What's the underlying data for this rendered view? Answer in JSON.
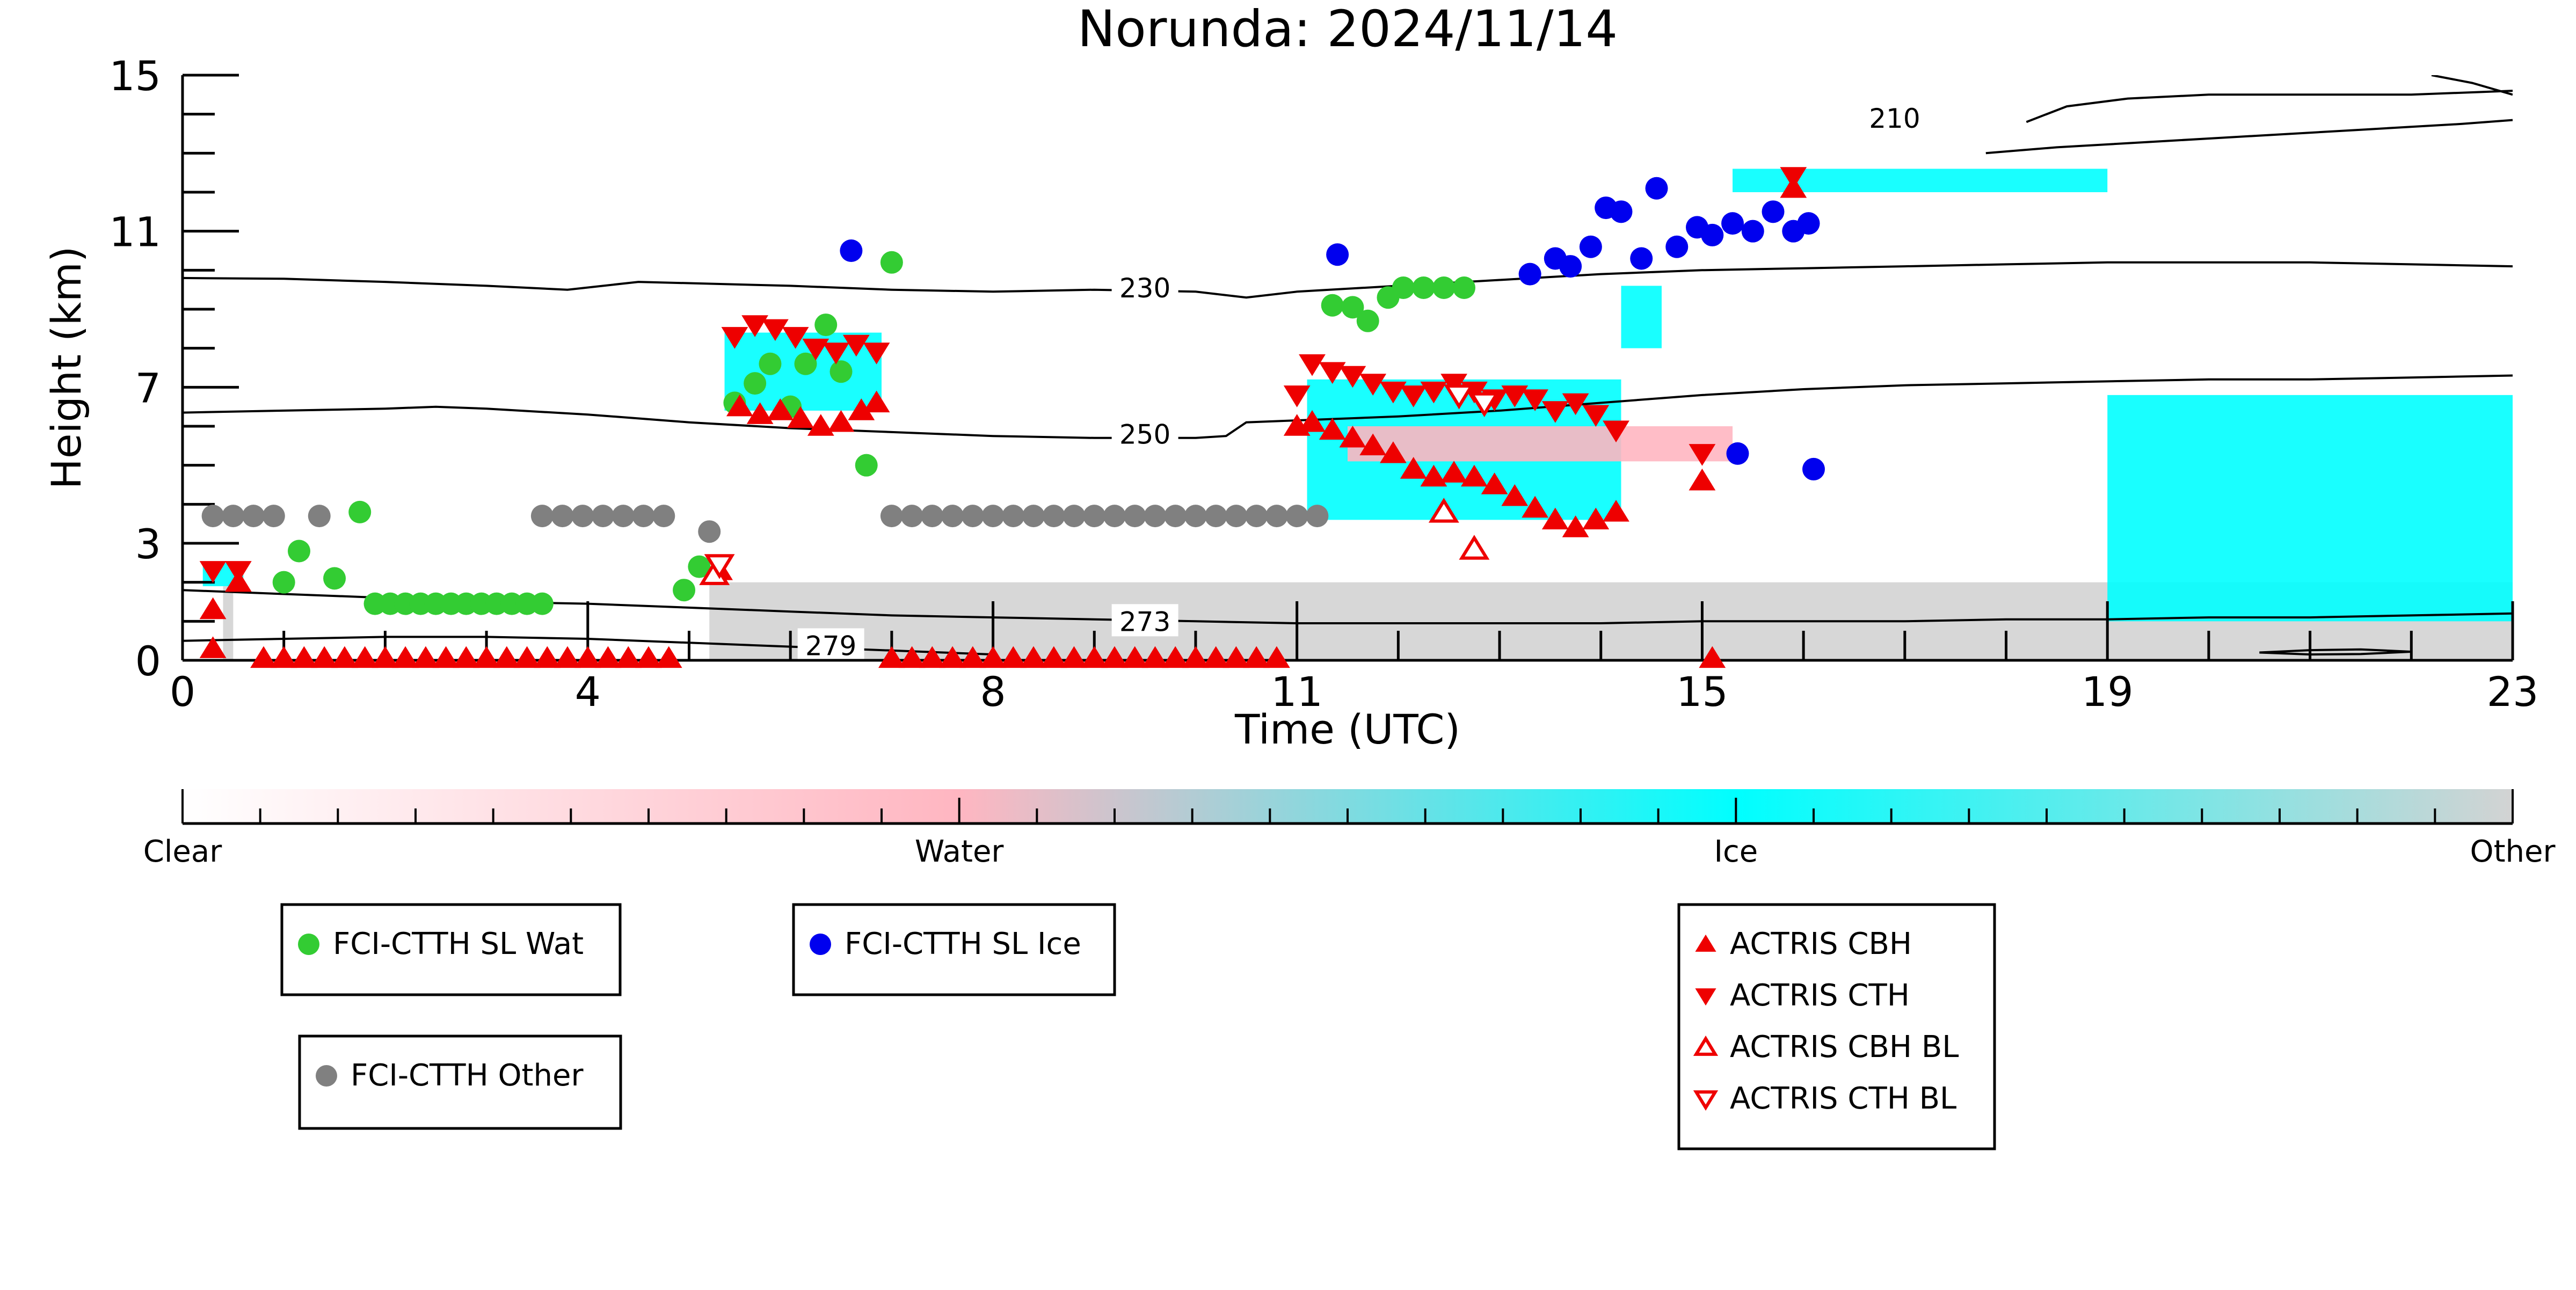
{
  "chart_data": {
    "type": "scatter",
    "title": "Norunda: 2024/11/14",
    "xlabel": "Time (UTC)",
    "ylabel": "Height (km)",
    "xlim": [
      0,
      23
    ],
    "ylim": [
      0,
      15
    ],
    "xticks_labeled": [
      0,
      4,
      8,
      11,
      15,
      19,
      23
    ],
    "yticks_labeled": [
      0,
      3,
      7,
      11,
      15
    ],
    "grid": false,
    "colorbar": {
      "labels": [
        "Clear",
        "Water",
        "Ice",
        "Other"
      ],
      "colors": [
        "#ffffff",
        "#ffb6c1",
        "#00ffff",
        "#d3d3d3"
      ]
    },
    "contours": [
      {
        "label": "210",
        "label_x": 16.9,
        "label_y": 13.9,
        "x": [
          18.2,
          18.6,
          19.2,
          20.0,
          21.0,
          22.0,
          23.0
        ],
        "y": [
          13.8,
          14.2,
          14.4,
          14.5,
          14.5,
          14.5,
          14.6
        ]
      },
      {
        "label": "",
        "label_x": null,
        "label_y": null,
        "x": [
          17.8,
          18.5,
          19.5,
          20.5,
          21.5,
          22.5,
          23.0
        ],
        "y": [
          13.0,
          13.15,
          13.3,
          13.45,
          13.6,
          13.75,
          13.85
        ]
      },
      {
        "label": "",
        "label_x": null,
        "label_y": null,
        "x": [
          22.2,
          22.6,
          23.0
        ],
        "y": [
          15.0,
          14.8,
          14.5
        ]
      },
      {
        "label": "230",
        "label_x": 9.5,
        "label_y": 9.55,
        "x": [
          0,
          1,
          2,
          3,
          3.8,
          4.5,
          6,
          7,
          8,
          9,
          10,
          10.5,
          11,
          12,
          13,
          14,
          15,
          16,
          17,
          18,
          19,
          20,
          21,
          22,
          23
        ],
        "y": [
          9.8,
          9.78,
          9.7,
          9.6,
          9.5,
          9.7,
          9.6,
          9.5,
          9.45,
          9.5,
          9.45,
          9.3,
          9.45,
          9.6,
          9.75,
          9.9,
          10.0,
          10.05,
          10.1,
          10.15,
          10.2,
          10.2,
          10.2,
          10.15,
          10.1
        ]
      },
      {
        "label": "250",
        "label_x": 9.5,
        "label_y": 5.8,
        "x": [
          0,
          1,
          2,
          2.5,
          3,
          4,
          5,
          6,
          7,
          8,
          9,
          10,
          10.3,
          10.5,
          11,
          12,
          13,
          14,
          15,
          16,
          17,
          18,
          19,
          20,
          21,
          22,
          23
        ],
        "y": [
          6.35,
          6.4,
          6.45,
          6.5,
          6.45,
          6.3,
          6.1,
          5.95,
          5.85,
          5.75,
          5.7,
          5.7,
          5.75,
          6.1,
          6.15,
          6.25,
          6.4,
          6.6,
          6.8,
          6.95,
          7.05,
          7.1,
          7.15,
          7.2,
          7.2,
          7.25,
          7.3
        ]
      },
      {
        "label": "273",
        "label_x": 9.5,
        "label_y": 1.0,
        "x": [
          0,
          1,
          2,
          3,
          4,
          5,
          6,
          7,
          8,
          9,
          10,
          11,
          12,
          13,
          14,
          15,
          16,
          17,
          18,
          19,
          20,
          21,
          22,
          23
        ],
        "y": [
          1.8,
          1.7,
          1.6,
          1.5,
          1.45,
          1.35,
          1.25,
          1.15,
          1.1,
          1.05,
          1.0,
          0.95,
          0.95,
          0.95,
          0.95,
          1.0,
          1.0,
          1.0,
          1.05,
          1.05,
          1.1,
          1.1,
          1.15,
          1.2
        ]
      },
      {
        "label": "279",
        "label_x": 6.4,
        "label_y": 0.38,
        "x": [
          0,
          1,
          2,
          3,
          4,
          5,
          6,
          7,
          8
        ],
        "y": [
          0.5,
          0.55,
          0.6,
          0.6,
          0.55,
          0.45,
          0.35,
          0.25,
          0.15
        ]
      },
      {
        "label": "",
        "label_x": null,
        "label_y": null,
        "x": [
          20.5,
          21.0,
          21.5,
          22.0,
          21.5,
          21.0,
          20.5
        ],
        "y": [
          0.2,
          0.26,
          0.28,
          0.22,
          0.16,
          0.15,
          0.2
        ]
      }
    ],
    "series": [
      {
        "name": "FCI-CTTH SL Wat",
        "marker": "circle",
        "color": "#33cc33",
        "x": [
          1.0,
          1.15,
          1.5,
          1.75,
          1.9,
          2.05,
          2.2,
          2.35,
          2.5,
          2.65,
          2.8,
          2.95,
          3.1,
          3.25,
          3.4,
          3.55,
          4.95,
          5.1,
          5.45,
          5.65,
          5.8,
          6.0,
          6.15,
          6.35,
          6.5,
          6.75,
          7.0,
          11.35,
          11.55,
          11.7,
          11.9,
          12.05,
          12.25,
          12.45,
          12.65
        ],
        "y": [
          2.0,
          2.8,
          2.1,
          3.8,
          1.45,
          1.45,
          1.45,
          1.45,
          1.45,
          1.45,
          1.45,
          1.45,
          1.45,
          1.45,
          1.45,
          1.45,
          1.8,
          2.4,
          6.6,
          7.1,
          7.6,
          6.5,
          7.6,
          8.6,
          7.4,
          5.0,
          10.2,
          9.1,
          9.05,
          8.7,
          9.3,
          9.55,
          9.55,
          9.55,
          9.55
        ]
      },
      {
        "name": "FCI-CTTH SL Ice",
        "marker": "circle",
        "color": "#0000ee",
        "x": [
          6.6,
          11.4,
          13.3,
          13.55,
          13.7,
          13.9,
          14.05,
          14.2,
          14.4,
          14.55,
          14.75,
          14.95,
          15.1,
          15.3,
          15.5,
          15.7,
          15.9,
          16.05,
          15.35,
          16.1
        ],
        "y": [
          10.5,
          10.4,
          9.9,
          10.3,
          10.1,
          10.6,
          11.6,
          11.5,
          10.3,
          12.1,
          10.6,
          11.1,
          10.9,
          11.2,
          11.0,
          11.5,
          11.0,
          11.2,
          5.3,
          4.9
        ]
      },
      {
        "name": "FCI-CTTH Other",
        "marker": "circle",
        "color": "#808080",
        "x": [
          0.3,
          0.5,
          0.7,
          0.9,
          1.35,
          3.55,
          3.75,
          3.95,
          4.15,
          4.35,
          4.55,
          4.75,
          5.2,
          7.0,
          7.2,
          7.4,
          7.6,
          7.8,
          8.0,
          8.2,
          8.4,
          8.6,
          8.8,
          9.0,
          9.2,
          9.4,
          9.6,
          9.8,
          10.0,
          10.2,
          10.4,
          10.6,
          10.8,
          11.0,
          11.2
        ],
        "y": [
          3.7,
          3.7,
          3.7,
          3.7,
          3.7,
          3.7,
          3.7,
          3.7,
          3.7,
          3.7,
          3.7,
          3.7,
          3.3,
          3.7,
          3.7,
          3.7,
          3.7,
          3.7,
          3.7,
          3.7,
          3.7,
          3.7,
          3.7,
          3.7,
          3.7,
          3.7,
          3.7,
          3.7,
          3.7,
          3.7,
          3.7,
          3.7,
          3.7,
          3.7,
          3.7
        ]
      },
      {
        "name": "ACTRIS CBH",
        "marker": "triangle-up",
        "color": "#ee0000",
        "x": [
          0.3,
          0.55,
          5.3,
          5.5,
          5.7,
          5.9,
          6.1,
          6.3,
          6.5,
          6.7,
          6.85,
          11.0,
          11.15,
          11.35,
          11.55,
          11.75,
          11.95,
          12.15,
          12.35,
          12.55,
          12.75,
          12.95,
          13.15,
          13.35,
          13.55,
          13.75,
          13.95,
          14.15,
          15.0,
          15.9,
          0.3
        ],
        "y": [
          1.3,
          2.0,
          2.3,
          6.5,
          6.3,
          6.4,
          6.2,
          6.0,
          6.1,
          6.4,
          6.6,
          6.0,
          6.1,
          5.9,
          5.7,
          5.5,
          5.3,
          4.9,
          4.7,
          4.8,
          4.7,
          4.5,
          4.2,
          3.9,
          3.6,
          3.4,
          3.6,
          3.8,
          4.6,
          12.1,
          0.3
        ]
      },
      {
        "name": "ACTRIS CTH",
        "marker": "triangle-down",
        "color": "#ee0000",
        "x": [
          0.3,
          0.55,
          5.3,
          5.45,
          5.65,
          5.85,
          6.05,
          6.25,
          6.45,
          6.65,
          6.85,
          11.0,
          11.15,
          11.35,
          11.55,
          11.75,
          11.95,
          12.15,
          12.35,
          12.55,
          12.75,
          12.95,
          13.15,
          13.35,
          13.55,
          13.75,
          13.95,
          14.15,
          15.0,
          15.9
        ],
        "y": [
          2.3,
          2.3,
          2.4,
          8.3,
          8.6,
          8.5,
          8.3,
          8.0,
          7.9,
          8.1,
          7.9,
          6.8,
          7.6,
          7.4,
          7.3,
          7.1,
          6.9,
          6.8,
          6.9,
          7.1,
          6.9,
          6.7,
          6.8,
          6.7,
          6.4,
          6.6,
          6.3,
          5.9,
          5.3,
          12.4
        ]
      },
      {
        "name": "ACTRIS CBH BL",
        "marker": "triangle-up-open",
        "color": "#ee0000",
        "x": [
          5.25,
          12.45,
          12.75
        ],
        "y": [
          2.2,
          3.8,
          2.85
        ]
      },
      {
        "name": "ACTRIS CTH BL",
        "marker": "triangle-down-open",
        "color": "#ee0000",
        "x": [
          5.3,
          12.6,
          12.85
        ],
        "y": [
          2.45,
          6.8,
          6.6
        ]
      },
      {
        "name": "",
        "marker": "triangle-up",
        "color": "#ee0000",
        "x": [
          0.8,
          1.0,
          1.2,
          1.4,
          1.6,
          1.8,
          2.0,
          2.2,
          2.4,
          2.6,
          2.8,
          3.0,
          3.2,
          3.4,
          3.6,
          3.8,
          4.0,
          4.2,
          4.4,
          4.6,
          4.8,
          7.0,
          7.2,
          7.4,
          7.6,
          7.8,
          8.0,
          8.2,
          8.4,
          8.6,
          8.8,
          9.0,
          9.2,
          9.4,
          9.6,
          9.8,
          10.0,
          10.2,
          10.4,
          10.6,
          10.8,
          15.1
        ],
        "y": [
          0.05,
          0.05,
          0.05,
          0.05,
          0.05,
          0.05,
          0.05,
          0.05,
          0.05,
          0.05,
          0.05,
          0.05,
          0.05,
          0.05,
          0.05,
          0.05,
          0.05,
          0.05,
          0.05,
          0.05,
          0.05,
          0.05,
          0.05,
          0.05,
          0.05,
          0.05,
          0.05,
          0.05,
          0.05,
          0.05,
          0.05,
          0.05,
          0.05,
          0.05,
          0.05,
          0.05,
          0.05,
          0.05,
          0.05,
          0.05,
          0.05,
          0.05
        ]
      }
    ],
    "classification_regions": [
      {
        "class": "Other",
        "color": "#d3d3d3",
        "x0": 5.2,
        "x1": 23.0,
        "y0": 0.0,
        "y1": 2.0
      },
      {
        "class": "Other",
        "color": "#d3d3d3",
        "x0": 0.4,
        "x1": 0.5,
        "y0": 0.0,
        "y1": 1.9
      },
      {
        "class": "Ice",
        "color": "#00ffff",
        "x0": 0.2,
        "x1": 0.6,
        "y0": 1.9,
        "y1": 2.5
      },
      {
        "class": "Ice",
        "color": "#00ffff",
        "x0": 5.35,
        "x1": 6.9,
        "y0": 6.4,
        "y1": 8.4
      },
      {
        "class": "Ice",
        "color": "#00ffff",
        "x0": 11.1,
        "x1": 14.2,
        "y0": 3.6,
        "y1": 7.2
      },
      {
        "class": "Water",
        "color": "#ffb6c1",
        "x0": 11.5,
        "x1": 15.3,
        "y0": 5.1,
        "y1": 6.0
      },
      {
        "class": "Ice",
        "color": "#00ffff",
        "x0": 19.0,
        "x1": 23.0,
        "y0": 1.0,
        "y1": 6.8
      },
      {
        "class": "Ice",
        "color": "#00ffff",
        "x0": 15.3,
        "x1": 19.0,
        "y0": 12.0,
        "y1": 12.6
      },
      {
        "class": "Ice",
        "color": "#00ffff",
        "x0": 14.2,
        "x1": 14.6,
        "y0": 8.0,
        "y1": 9.6
      }
    ],
    "legends": [
      {
        "entries": [
          "FCI-CTTH SL Wat"
        ]
      },
      {
        "entries": [
          "FCI-CTTH SL Ice"
        ]
      },
      {
        "entries": [
          "FCI-CTTH Other"
        ]
      },
      {
        "entries": [
          "ACTRIS CBH",
          "ACTRIS CTH",
          "ACTRIS CBH BL",
          "ACTRIS CTH BL"
        ]
      }
    ]
  }
}
